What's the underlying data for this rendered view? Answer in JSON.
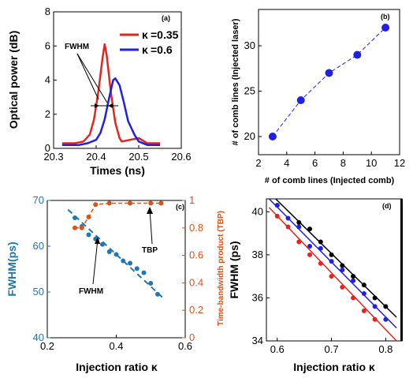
{
  "chart_data": [
    {
      "panel_label": "(a)",
      "type": "line",
      "xlabel": "Times (ns)",
      "ylabel": "Optical power (dB)",
      "xlim": [
        20.3,
        20.6
      ],
      "ylim": [
        0,
        8
      ],
      "xticks": [
        "20.3",
        "20.4",
        "20.5",
        "20.6"
      ],
      "yticks": [
        "0",
        "2",
        "4",
        "6",
        "8"
      ],
      "legend": {
        "position": "top-right",
        "symbol": "κ"
      },
      "annotation": "FWHM",
      "series": [
        {
          "name": "=0.35",
          "color": "#e8231e",
          "x": [
            20.32,
            20.35,
            20.37,
            20.385,
            20.395,
            20.405,
            20.415,
            20.42,
            20.425,
            20.435,
            20.445,
            20.455,
            20.46,
            20.48,
            20.5,
            20.52,
            20.54,
            20.55
          ],
          "y": [
            0.3,
            0.3,
            0.4,
            0.8,
            1.7,
            3.3,
            5.3,
            6.1,
            5.4,
            3.2,
            1.5,
            0.6,
            0.4,
            0.5,
            0.6,
            0.3,
            0.3,
            0.3
          ]
        },
        {
          "name": "=0.6",
          "color": "#1f1fe8",
          "x": [
            20.32,
            20.36,
            20.38,
            20.4,
            20.41,
            20.42,
            20.43,
            20.44,
            20.445,
            20.455,
            20.465,
            20.475,
            20.49,
            20.5,
            20.52,
            20.54,
            20.55
          ],
          "y": [
            0.2,
            0.2,
            0.3,
            0.5,
            0.9,
            1.7,
            2.9,
            4.0,
            4.1,
            3.7,
            2.7,
            1.6,
            0.8,
            0.4,
            0.2,
            0.2,
            0.2
          ]
        }
      ]
    },
    {
      "panel_label": "(b)",
      "type": "line",
      "xlabel": "# of comb lines (Injected comb)",
      "ylabel": "# of comb lines (Injected laser)",
      "xlim": [
        2,
        12
      ],
      "ylim": [
        18,
        34
      ],
      "xticks": [
        "2",
        "4",
        "6",
        "8",
        "10",
        "12"
      ],
      "yticks": [
        "20",
        "25",
        "30"
      ],
      "series": [
        {
          "color": "#1f1fe8",
          "style": "dashed-with-markers",
          "x": [
            3,
            5,
            7,
            9,
            11
          ],
          "y": [
            20,
            24,
            27,
            29,
            32
          ]
        }
      ]
    },
    {
      "panel_label": "(c)",
      "type": "scatter",
      "xlabel": "Injection ratio κ",
      "ylabel_left": "FWHM(ps)",
      "ylabel_right": "Time-bandwidth product (TBP)",
      "xlim": [
        0.2,
        0.6
      ],
      "ylim_left": [
        40,
        70
      ],
      "ylim_right": [
        0,
        1
      ],
      "xticks": [
        "0.2",
        "0.4",
        "0.6"
      ],
      "yticks_left": [
        "40",
        "50",
        "60",
        "70"
      ],
      "yticks_right": [
        "0",
        "0.2",
        "0.4",
        "0.6",
        "0.8",
        "1"
      ],
      "annotations": [
        "FWHM",
        "TBP"
      ],
      "series": [
        {
          "name": "FWHM",
          "axis": "left",
          "color": "#1f77b4",
          "x": [
            0.28,
            0.3,
            0.32,
            0.34,
            0.36,
            0.38,
            0.4,
            0.42,
            0.44,
            0.46,
            0.48,
            0.5,
            0.52
          ],
          "y": [
            66.2,
            64.3,
            62.5,
            61.6,
            60.4,
            58.8,
            58.2,
            56.8,
            56.3,
            55.1,
            54.2,
            51.9,
            49.5
          ],
          "fit": {
            "x": [
              0.26,
              0.54
            ],
            "y": [
              68.0,
              48.4
            ]
          }
        },
        {
          "name": "TBP",
          "axis": "right",
          "color": "#d95319",
          "x": [
            0.28,
            0.3,
            0.32,
            0.34,
            0.38,
            0.44,
            0.5,
            0.53
          ],
          "y": [
            0.8,
            0.8,
            0.88,
            0.97,
            0.98,
            0.98,
            0.98,
            0.98
          ]
        }
      ]
    },
    {
      "panel_label": "(d)",
      "type": "scatter",
      "xlabel": "Injection ratio κ",
      "ylabel": "FWHM (ps)",
      "xlim": [
        0.58,
        0.83
      ],
      "ylim": [
        34,
        40.6
      ],
      "xticks": [
        "0.6",
        "0.7",
        "0.8"
      ],
      "yticks": [
        "34",
        "36",
        "38",
        "40"
      ],
      "series": [
        {
          "color": "#000000",
          "x": [
            0.6,
            0.64,
            0.66,
            0.68,
            0.7,
            0.72,
            0.74,
            0.76,
            0.78,
            0.8
          ],
          "y": [
            40.3,
            39.5,
            39.2,
            38.6,
            38.0,
            37.5,
            37.0,
            36.6,
            36.0,
            35.6
          ],
          "fit": {
            "x": [
              0.585,
              0.82
            ],
            "y": [
              40.9,
              35.1
            ]
          }
        },
        {
          "color": "#1f1fe8",
          "x": [
            0.6,
            0.62,
            0.64,
            0.66,
            0.68,
            0.7,
            0.72,
            0.74,
            0.76,
            0.78,
            0.8
          ],
          "y": [
            40.3,
            39.7,
            39.3,
            38.4,
            38.3,
            37.7,
            37.3,
            36.8,
            36.2,
            35.6,
            35.0
          ],
          "fit": {
            "x": [
              0.585,
              0.82
            ],
            "y": [
              40.6,
              34.6
            ]
          }
        },
        {
          "color": "#e8231e",
          "x": [
            0.6,
            0.62,
            0.64,
            0.66,
            0.68,
            0.7,
            0.72,
            0.74,
            0.76,
            0.78
          ],
          "y": [
            39.8,
            39.3,
            38.6,
            38.0,
            37.6,
            37.0,
            36.5,
            36.0,
            35.4,
            35.0
          ],
          "fit": {
            "x": [
              0.585,
              0.82
            ],
            "y": [
              40.2,
              34.0
            ]
          }
        }
      ]
    }
  ]
}
